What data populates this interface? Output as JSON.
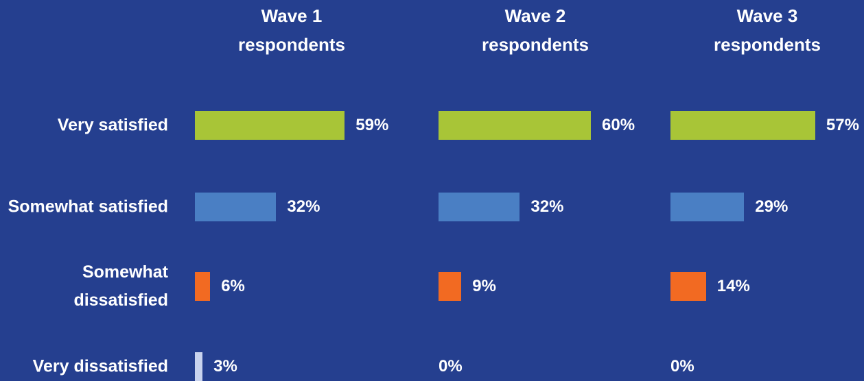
{
  "chart_data": {
    "type": "bar",
    "orientation": "horizontal",
    "categories": [
      "Very satisfied",
      "Somewhat satisfied",
      "Somewhat dissatisfied",
      "Very dissatisfied"
    ],
    "colors": [
      "#a8c537",
      "#4a7fc4",
      "#f26a22",
      "#c9d3ee"
    ],
    "series": [
      {
        "name": "Wave 1 respondents",
        "values": [
          59,
          32,
          6,
          3
        ],
        "value_labels": [
          "59%",
          "32%",
          "6%",
          "3%"
        ]
      },
      {
        "name": "Wave 2 respondents",
        "values": [
          60,
          32,
          9,
          0
        ],
        "value_labels": [
          "60%",
          "32%",
          "9%",
          "0%"
        ]
      },
      {
        "name": "Wave 3 respondents",
        "values": [
          57,
          29,
          14,
          0
        ],
        "value_labels": [
          "57%",
          "29%",
          "14%",
          "0%"
        ]
      }
    ]
  }
}
